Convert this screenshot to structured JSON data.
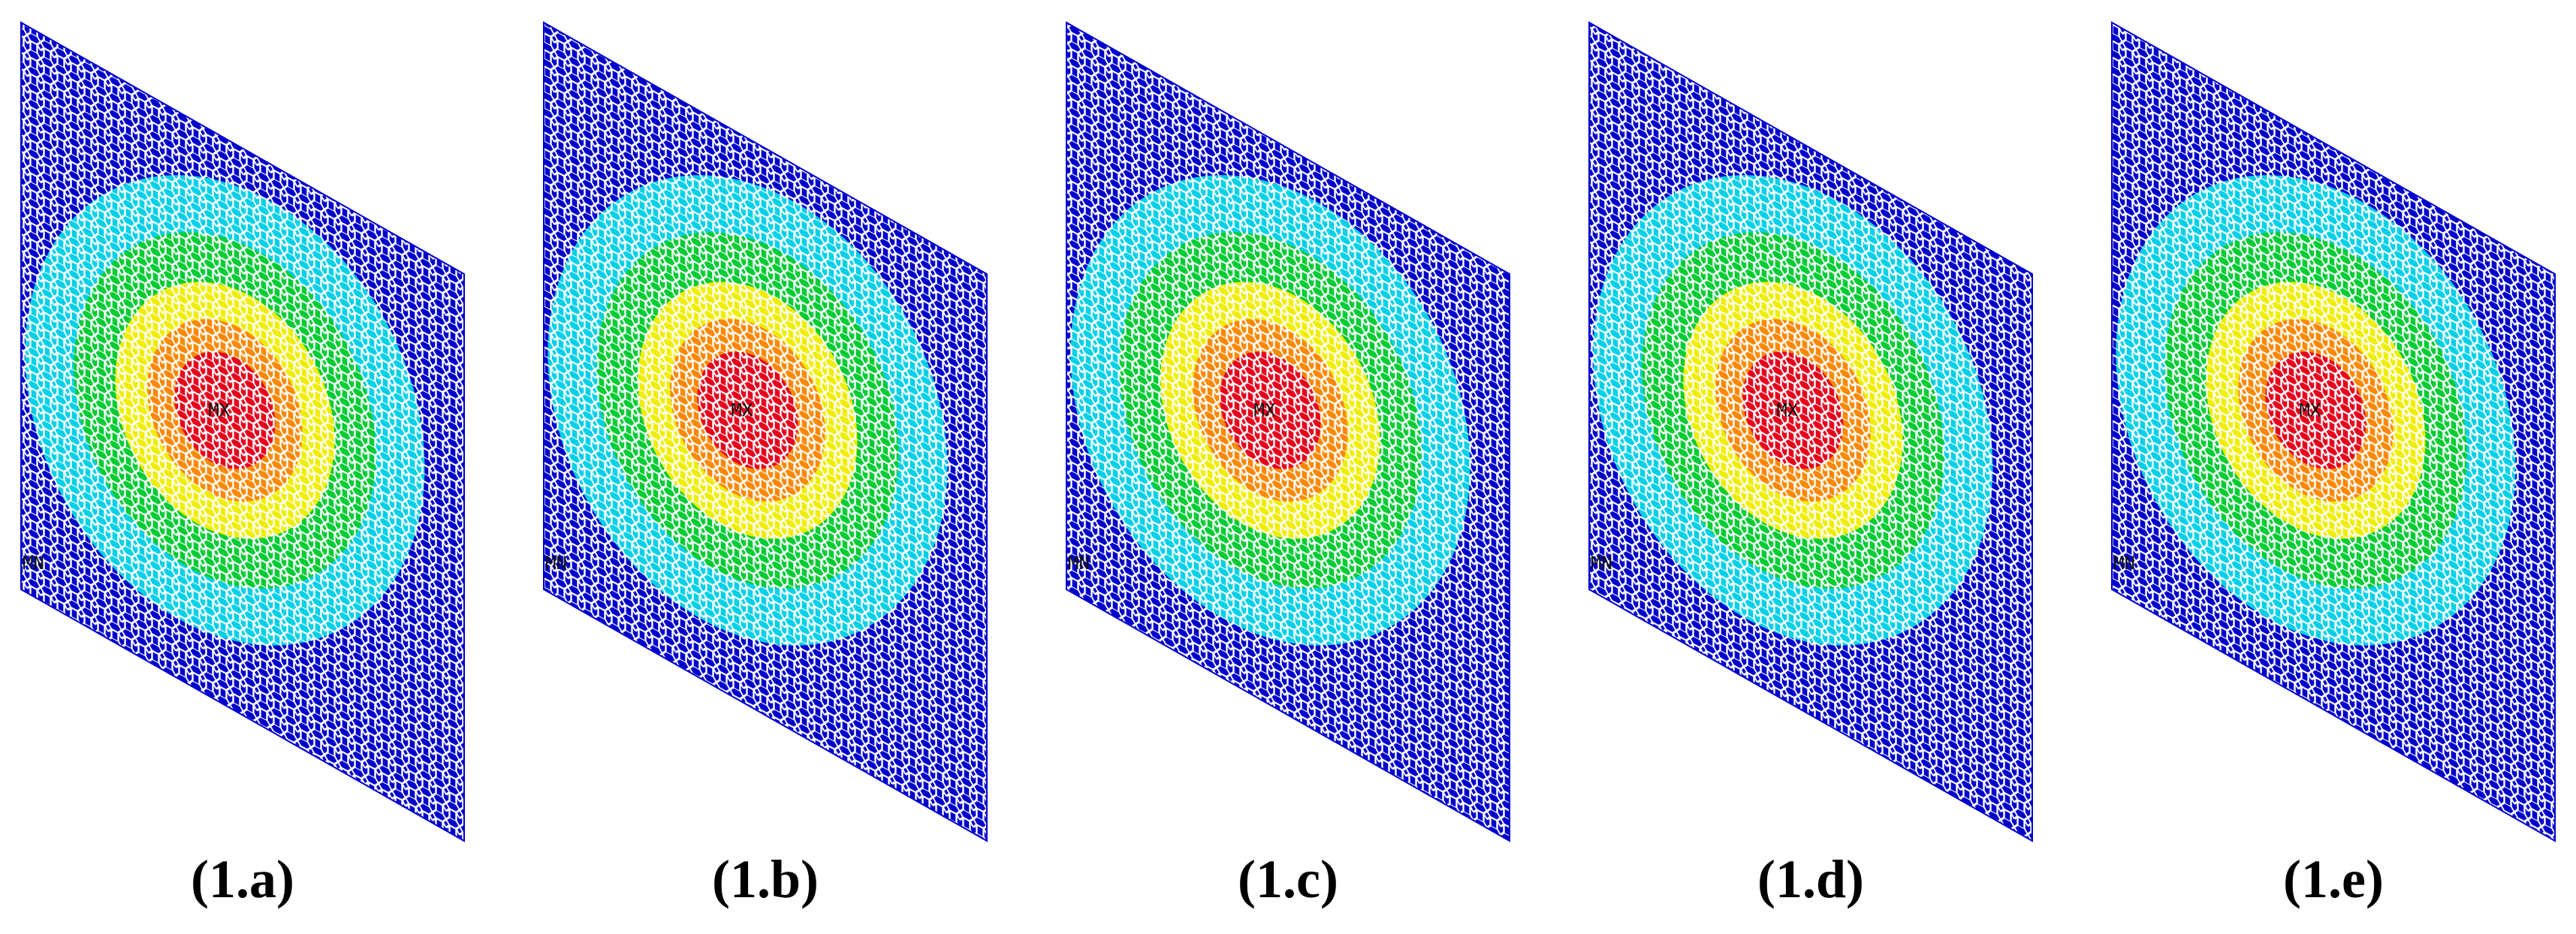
{
  "figure": {
    "panels": [
      {
        "caption": "(1.a)",
        "max_label": "MX",
        "min_label": "MN"
      },
      {
        "caption": "(1.b)",
        "max_label": "MX",
        "min_label": "MN"
      },
      {
        "caption": "(1.c)",
        "max_label": "MX",
        "min_label": "MN"
      },
      {
        "caption": "(1.d)",
        "max_label": "MX",
        "min_label": "MN"
      },
      {
        "caption": "(1.e)",
        "max_label": "MX",
        "min_label": "MN"
      }
    ],
    "contour_colors": [
      "#0000cc",
      "#00d0e8",
      "#00cc33",
      "#f0ee00",
      "#ff8800",
      "#e8001c"
    ],
    "mesh_line_color": "#ffffff"
  }
}
